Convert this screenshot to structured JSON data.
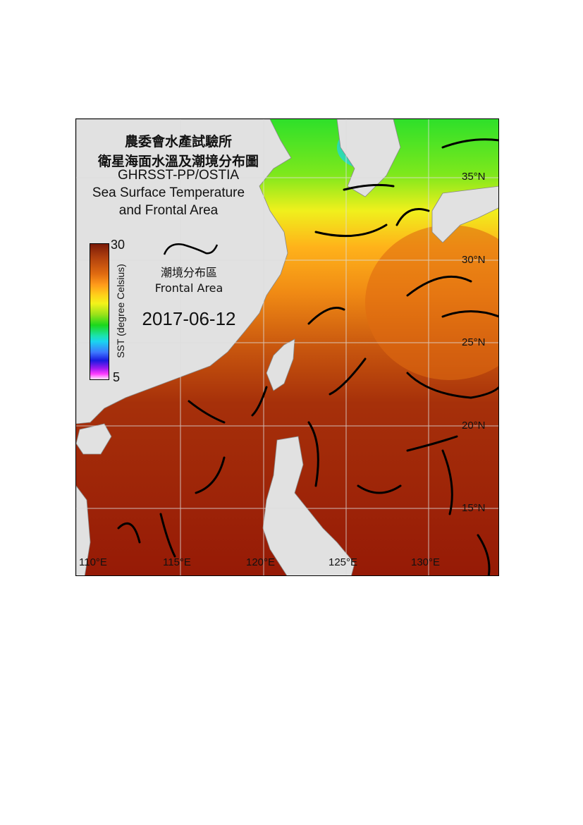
{
  "title": {
    "line1": "農委會水產試驗所",
    "line2": "衛星海面水溫及潮境分布圖",
    "line3": "GHRSST-PP/OSTIA",
    "line4": "Sea Surface Temperature",
    "line5": "and Frontal Area"
  },
  "colorbar": {
    "max": "30",
    "min": "5",
    "label": "SST (degree Celsius)",
    "colors": [
      "#7a1a08",
      "#e06a10",
      "#ffd21a",
      "#1bd81b",
      "#1ad5f0",
      "#1a1ae0",
      "#ff3cff",
      "#ffe6ff"
    ]
  },
  "legend": {
    "icon": "frontal-line-icon",
    "label_zh": "潮境分布區",
    "label_en": "Frontal Area"
  },
  "date": "2017-06-12",
  "axes": {
    "lon_labels": [
      "110°E",
      "115°E",
      "120°E",
      "125°E",
      "130°E"
    ],
    "lat_labels": [
      "35°N",
      "30°N",
      "25°N",
      "20°N",
      "15°N"
    ]
  }
}
